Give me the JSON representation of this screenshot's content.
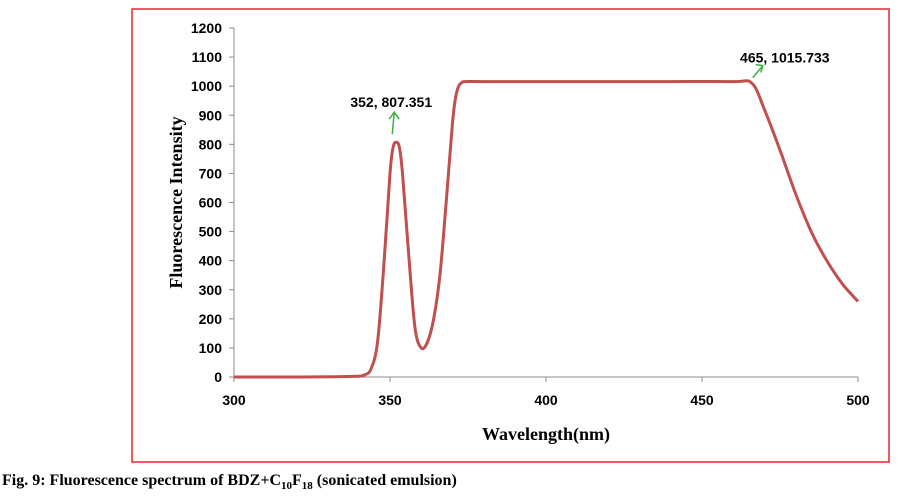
{
  "chart_data": {
    "type": "line",
    "xlabel": "Wavelength(nm)",
    "ylabel": "Fluorescence Intensity",
    "xlim": [
      300,
      500
    ],
    "ylim": [
      0,
      1200
    ],
    "x_ticks": [
      300,
      350,
      400,
      450,
      500
    ],
    "y_ticks": [
      0,
      100,
      200,
      300,
      400,
      500,
      600,
      700,
      800,
      900,
      1000,
      1100,
      1200
    ],
    "grid": false,
    "colors": {
      "line": "#c0504d",
      "frame": "#e8262c",
      "arrow": "#3cb043"
    },
    "series": [
      {
        "x": [
          300,
          320,
          338,
          342,
          344,
          346,
          348,
          350,
          351,
          352,
          353,
          354,
          356,
          358,
          360,
          362,
          364,
          366,
          368,
          370,
          371,
          372,
          373,
          374,
          380,
          400,
          420,
          440,
          460,
          466,
          470,
          475,
          480,
          485,
          490,
          495,
          500
        ],
        "y": [
          0,
          0,
          2,
          8,
          30,
          120,
          380,
          700,
          790,
          807,
          790,
          700,
          420,
          170,
          100,
          120,
          200,
          350,
          600,
          870,
          960,
          1000,
          1012,
          1015.7,
          1015.7,
          1015.7,
          1015.7,
          1015.7,
          1015.7,
          1010,
          920,
          780,
          630,
          500,
          400,
          320,
          260
        ]
      }
    ],
    "annotations": [
      {
        "text": "352, 807.351",
        "x": 352,
        "y": 807.351
      },
      {
        "text": "465, 1015.733",
        "x": 465,
        "y": 1015.733
      }
    ]
  },
  "caption": {
    "prefix": "Fig. 9: Fluorescence spectrum of BDZ+C",
    "sub1": "10",
    "mid": "F",
    "sub2": "18",
    "suffix": " (sonicated emulsion)"
  }
}
